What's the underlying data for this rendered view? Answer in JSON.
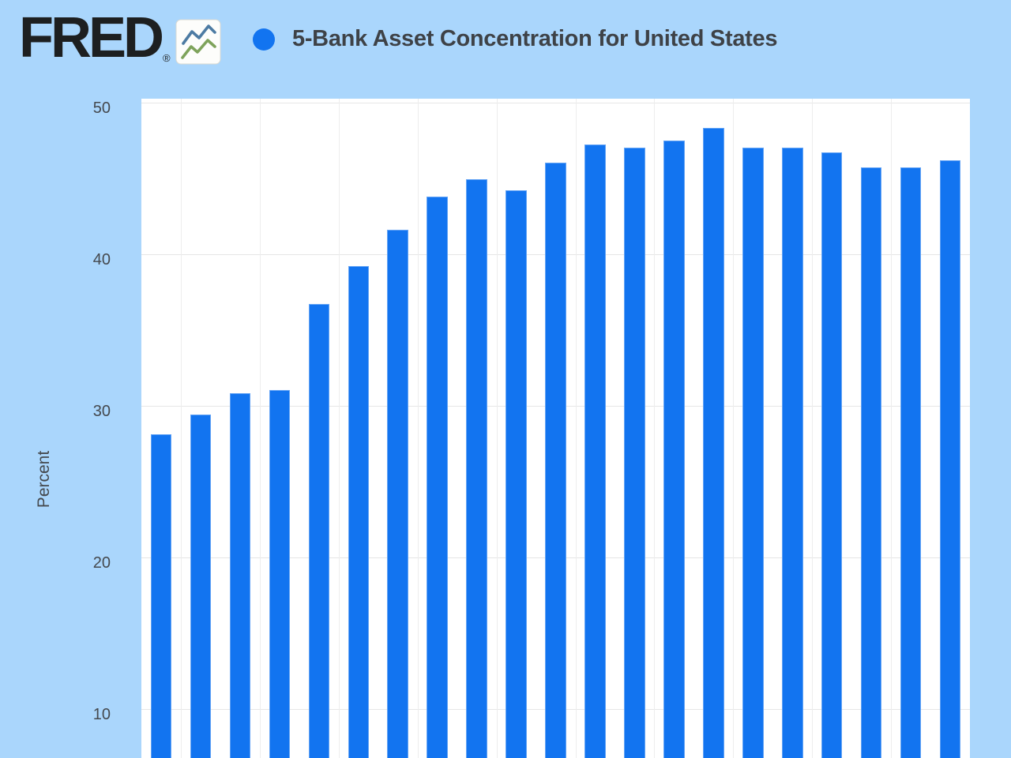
{
  "header": {
    "brand": "FRED",
    "registered": "®"
  },
  "legend": {
    "series_label": "5-Bank Asset Concentration for United States",
    "marker_color": "#1274f0"
  },
  "y_axis": {
    "title": "Percent",
    "ticks": [
      50,
      40,
      30,
      20,
      10
    ]
  },
  "chart_data": {
    "type": "bar",
    "title": "5-Bank Asset Concentration for United States",
    "ylabel": "Percent",
    "categories": [],
    "x_tick_labels_visible": false,
    "values": [
      28.1,
      29.4,
      30.8,
      31.0,
      36.7,
      39.2,
      41.6,
      43.8,
      44.9,
      44.2,
      46.0,
      47.2,
      47.0,
      47.5,
      48.3,
      47.0,
      47.0,
      46.7,
      45.7,
      45.7,
      46.2
    ],
    "y_ticks": [
      10,
      20,
      30,
      40,
      50
    ],
    "ylim_visible": [
      6.7,
      50.2
    ],
    "grid": true,
    "legend_position": "top",
    "bar_color": "#1274f0",
    "plot_bg": "#ffffff",
    "page_bg": "#aad6fc",
    "grid_color": "#e6e6e6",
    "axis_text_color": "#45494e",
    "title_color": "#3e4247"
  }
}
